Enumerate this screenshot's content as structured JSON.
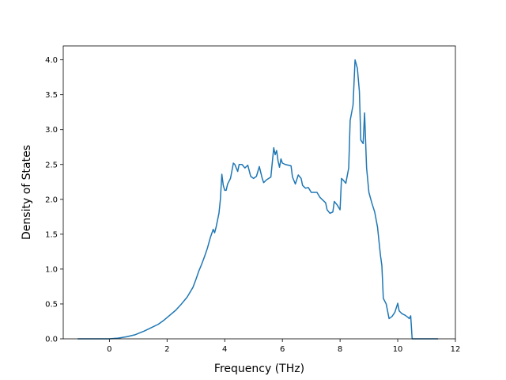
{
  "chart_data": {
    "type": "line",
    "title": "",
    "xlabel": "Frequency (THz)",
    "ylabel": "Density of States",
    "xlim": [
      -1.6,
      12.0
    ],
    "ylim": [
      0.0,
      4.2
    ],
    "xticks": [
      0,
      2,
      4,
      6,
      8,
      10,
      12
    ],
    "yticks": [
      0.0,
      0.5,
      1.0,
      1.5,
      2.0,
      2.5,
      3.0,
      3.5,
      4.0
    ],
    "xtick_labels": [
      "0",
      "2",
      "4",
      "6",
      "8",
      "10",
      "12"
    ],
    "ytick_labels": [
      "0.0",
      "0.5",
      "1.0",
      "1.5",
      "2.0",
      "2.5",
      "3.0",
      "3.5",
      "4.0"
    ],
    "grid": false,
    "series": [
      {
        "color": "#1f77b4",
        "points": [
          [
            -1.1,
            0.0
          ],
          [
            0.0,
            0.0
          ],
          [
            0.3,
            0.01
          ],
          [
            0.6,
            0.03
          ],
          [
            0.9,
            0.06
          ],
          [
            1.2,
            0.11
          ],
          [
            1.5,
            0.17
          ],
          [
            1.7,
            0.21
          ],
          [
            1.9,
            0.27
          ],
          [
            2.1,
            0.34
          ],
          [
            2.3,
            0.41
          ],
          [
            2.5,
            0.5
          ],
          [
            2.7,
            0.6
          ],
          [
            2.9,
            0.74
          ],
          [
            3.0,
            0.85
          ],
          [
            3.1,
            0.97
          ],
          [
            3.2,
            1.07
          ],
          [
            3.3,
            1.18
          ],
          [
            3.4,
            1.3
          ],
          [
            3.5,
            1.45
          ],
          [
            3.6,
            1.57
          ],
          [
            3.65,
            1.52
          ],
          [
            3.7,
            1.6
          ],
          [
            3.8,
            1.8
          ],
          [
            3.85,
            2.0
          ],
          [
            3.9,
            2.36
          ],
          [
            3.95,
            2.2
          ],
          [
            4.0,
            2.13
          ],
          [
            4.05,
            2.13
          ],
          [
            4.1,
            2.22
          ],
          [
            4.2,
            2.3
          ],
          [
            4.3,
            2.52
          ],
          [
            4.35,
            2.5
          ],
          [
            4.45,
            2.4
          ],
          [
            4.5,
            2.5
          ],
          [
            4.6,
            2.5
          ],
          [
            4.7,
            2.45
          ],
          [
            4.8,
            2.49
          ],
          [
            4.9,
            2.33
          ],
          [
            5.0,
            2.3
          ],
          [
            5.1,
            2.33
          ],
          [
            5.2,
            2.47
          ],
          [
            5.3,
            2.3
          ],
          [
            5.35,
            2.24
          ],
          [
            5.45,
            2.28
          ],
          [
            5.6,
            2.32
          ],
          [
            5.7,
            2.74
          ],
          [
            5.75,
            2.64
          ],
          [
            5.8,
            2.7
          ],
          [
            5.85,
            2.55
          ],
          [
            5.9,
            2.46
          ],
          [
            5.95,
            2.58
          ],
          [
            6.0,
            2.52
          ],
          [
            6.1,
            2.5
          ],
          [
            6.2,
            2.49
          ],
          [
            6.3,
            2.48
          ],
          [
            6.35,
            2.32
          ],
          [
            6.45,
            2.22
          ],
          [
            6.55,
            2.35
          ],
          [
            6.65,
            2.3
          ],
          [
            6.7,
            2.2
          ],
          [
            6.8,
            2.16
          ],
          [
            6.9,
            2.17
          ],
          [
            7.0,
            2.1
          ],
          [
            7.1,
            2.1
          ],
          [
            7.2,
            2.1
          ],
          [
            7.3,
            2.03
          ],
          [
            7.4,
            1.99
          ],
          [
            7.5,
            1.95
          ],
          [
            7.55,
            1.85
          ],
          [
            7.65,
            1.8
          ],
          [
            7.75,
            1.82
          ],
          [
            7.8,
            1.97
          ],
          [
            7.9,
            1.92
          ],
          [
            8.0,
            1.85
          ],
          [
            8.05,
            2.3
          ],
          [
            8.1,
            2.28
          ],
          [
            8.2,
            2.23
          ],
          [
            8.3,
            2.45
          ],
          [
            8.35,
            3.13
          ],
          [
            8.45,
            3.35
          ],
          [
            8.52,
            4.0
          ],
          [
            8.6,
            3.88
          ],
          [
            8.67,
            3.55
          ],
          [
            8.72,
            2.85
          ],
          [
            8.8,
            2.8
          ],
          [
            8.85,
            3.24
          ],
          [
            8.92,
            2.45
          ],
          [
            9.0,
            2.1
          ],
          [
            9.1,
            1.95
          ],
          [
            9.2,
            1.82
          ],
          [
            9.3,
            1.6
          ],
          [
            9.35,
            1.4
          ],
          [
            9.4,
            1.2
          ],
          [
            9.45,
            1.05
          ],
          [
            9.5,
            0.58
          ],
          [
            9.6,
            0.5
          ],
          [
            9.7,
            0.29
          ],
          [
            9.8,
            0.32
          ],
          [
            9.9,
            0.38
          ],
          [
            10.0,
            0.51
          ],
          [
            10.05,
            0.4
          ],
          [
            10.15,
            0.36
          ],
          [
            10.25,
            0.34
          ],
          [
            10.35,
            0.31
          ],
          [
            10.4,
            0.29
          ],
          [
            10.45,
            0.33
          ],
          [
            10.5,
            0.0
          ],
          [
            11.4,
            0.0
          ]
        ]
      }
    ]
  }
}
